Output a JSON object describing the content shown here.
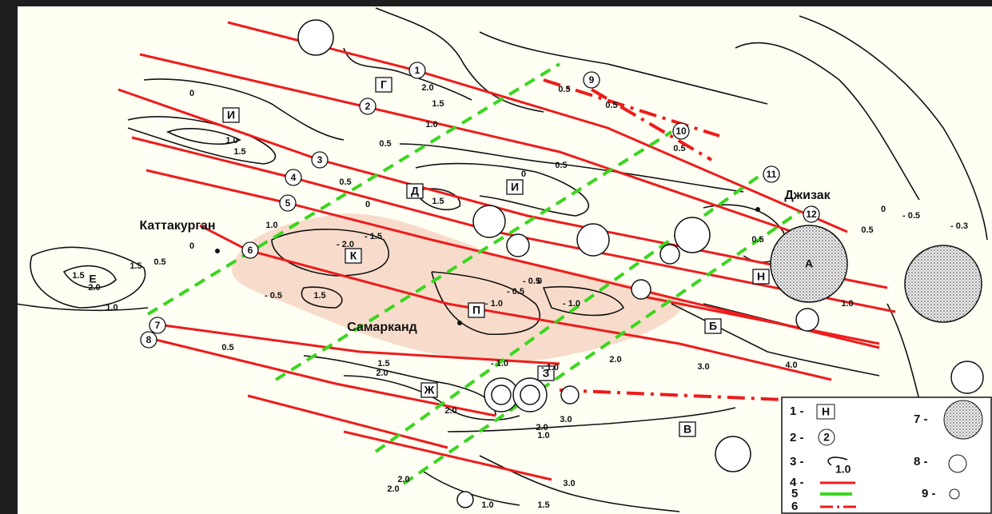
{
  "cities": [
    "Каттакурган",
    "Самарканд",
    "Джизак"
  ],
  "zones": [
    "Г",
    "И",
    "И",
    "Д",
    "К",
    "П",
    "Б",
    "Н",
    "З",
    "Ж",
    "В",
    "А",
    "Е"
  ],
  "faults": [
    "1",
    "2",
    "3",
    "4",
    "5",
    "6",
    "7",
    "8",
    "9",
    "10",
    "11",
    "12"
  ],
  "contour_labels": [
    "0",
    "2.0",
    "1.5",
    "1.0",
    "0.5",
    "0.5",
    "0.5",
    "1.0",
    "1.5",
    "0.5",
    "0",
    "0.5",
    "0",
    "1.5",
    "1.0",
    "- 1.5",
    "- 2.0",
    "1.5",
    "0.5",
    "0",
    "1.5",
    "2.0",
    "1.0",
    "- 0.5",
    "1.5",
    "- 1.0",
    "- 0.5",
    "0",
    "- 0.5",
    "- 1.0",
    "0.5",
    "1.5",
    "2.0",
    "2.0",
    "- 1.0",
    "- 1.0",
    "2.0",
    "3.0",
    "2.0",
    "3.0",
    "2.0",
    "1.0",
    "1.5",
    "3.0",
    "4.0",
    "2.0",
    "1.0",
    "1.0",
    "0",
    "0.5",
    "- 0.5",
    "- 0.3",
    "0.5",
    "0.5"
  ],
  "legend": [
    {
      "key": "1 -",
      "symbol": "Н"
    },
    {
      "key": "2 -",
      "symbol": "2"
    },
    {
      "key": "3 -",
      "symbol": "1.0"
    },
    {
      "key": "4 -"
    },
    {
      "key": "5"
    },
    {
      "key": "6"
    },
    {
      "key": "7 -"
    },
    {
      "key": "8 -"
    },
    {
      "key": "9 -"
    }
  ]
}
